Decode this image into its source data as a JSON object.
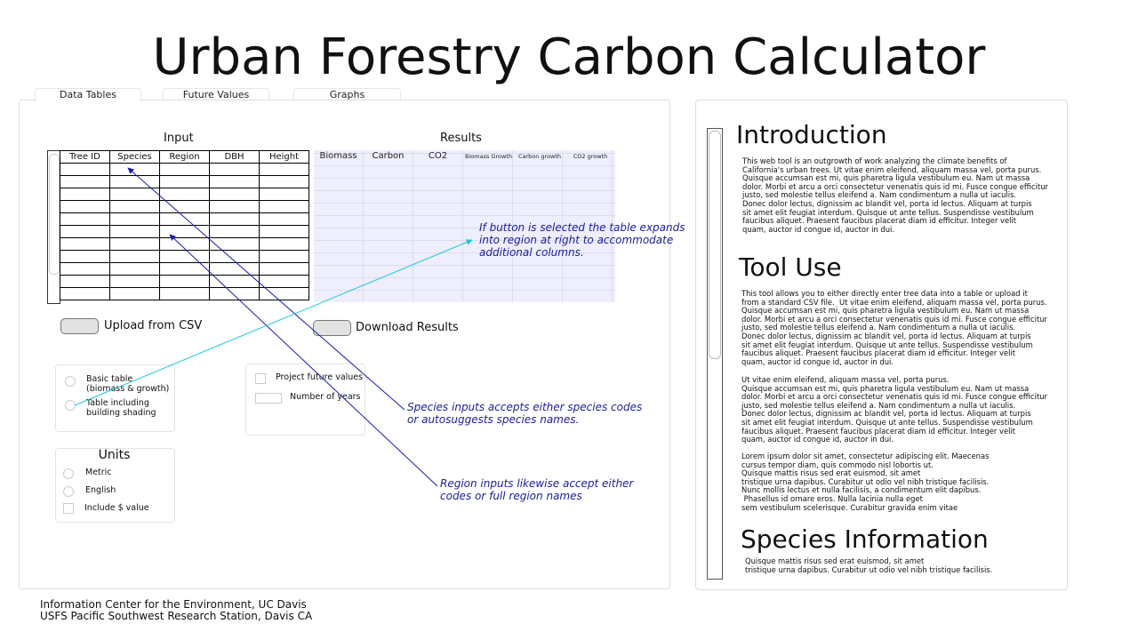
{
  "title": "Urban Forestry Carbon Calculator",
  "tabs": {
    "data_tables": "Data Tables",
    "future_values": "Future Values",
    "graphs": "Graphs"
  },
  "input": {
    "label": "Input",
    "headers": [
      "Tree ID",
      "Species",
      "Region",
      "DBH",
      "Height"
    ]
  },
  "results": {
    "label": "Results",
    "headers": [
      "Biomass",
      "Carbon",
      "CO2",
      "Biomass Growth",
      "Carbon growth",
      "CO2 growth"
    ]
  },
  "buttons": {
    "upload": "Upload from CSV",
    "download": "Download Results"
  },
  "table_options": {
    "basic": "Basic table\n(biomass & growth)",
    "shading": "Table including\nbuilding shading"
  },
  "future": {
    "project": "Project future values",
    "years": "Number of years"
  },
  "units": {
    "title": "Units",
    "metric": "Metric",
    "english": "English",
    "dollar": "Include $ value"
  },
  "notes": {
    "expand": "If button is selected the table expands\ninto region at right to accommodate\nadditional columns.",
    "species": "Species inputs accepts either species codes\nor autosuggests species names.",
    "region": "Region inputs likewise accept either\ncodes or full region names"
  },
  "side": {
    "intro_title": "Introduction",
    "intro_text": "This web tool is an outgrowth of work analyzing the climate benefits of\nCalifornia's urban trees. Ut vitae enim eleifend, aliquam massa vel, porta purus.\nQuisque accumsan est mi, quis pharetra ligula vestibulum eu. Nam ut massa\ndolor. Morbi et arcu a orci consectetur venenatis quis id mi. Fusce congue efficitur\njusto, sed molestie tellus eleifend a. Nam condimentum a nulla ut iaculis.\nDonec dolor lectus, dignissim ac blandit vel, porta id lectus. Aliquam at turpis\nsit amet elit feugiat interdum. Quisque ut ante tellus. Suspendisse vestibulum\nfaucibus aliquet. Praesent faucibus placerat diam id efficitur. Integer velit\nquam, auctor id congue id, auctor in dui.",
    "tool_title": "Tool Use",
    "tool_text_1": "This tool allows you to either directly enter tree data into a table or upload it\nfrom a standard CSV file.  Ut vitae enim eleifend, aliquam massa vel, porta purus.\nQuisque accumsan est mi, quis pharetra ligula vestibulum eu. Nam ut massa\ndolor. Morbi et arcu a orci consectetur venenatis quis id mi. Fusce congue efficitur\njusto, sed molestie tellus eleifend a. Nam condimentum a nulla ut iaculis.\nDonec dolor lectus, dignissim ac blandit vel, porta id lectus. Aliquam at turpis\nsit amet elit feugiat interdum. Quisque ut ante tellus. Suspendisse vestibulum\nfaucibus aliquet. Praesent faucibus placerat diam id efficitur. Integer velit\nquam, auctor id congue id, auctor in dui.",
    "tool_text_2": "Ut vitae enim eleifend, aliquam massa vel, porta purus.\nQuisque accumsan est mi, quis pharetra ligula vestibulum eu. Nam ut massa\ndolor. Morbi et arcu a orci consectetur venenatis quis id mi. Fusce congue efficitur\njusto, sed molestie tellus eleifend a. Nam condimentum a nulla ut iaculis.\nDonec dolor lectus, dignissim ac blandit vel, porta id lectus. Aliquam at turpis\nsit amet elit feugiat interdum. Quisque ut ante tellus. Suspendisse vestibulum\nfaucibus aliquet. Praesent faucibus placerat diam id efficitur. Integer velit\nquam, auctor id congue id, auctor in dui.",
    "tool_text_3": "Lorem ipsum dolor sit amet, consectetur adipiscing elit. Maecenas\ncursus tempor diam, quis commodo nisl lobortis ut.\nQuisque mattis risus sed erat euismod, sit amet\ntristique urna dapibus. Curabitur ut odio vel nibh tristique facilisis.\nNunc mollis lectus et nulla facilisis, a condimentum elit dapibus.\n Phasellus id ornare eros. Nulla lacinia nulla eget\nsem vestibulum scelerisque. Curabitur gravida enim vitae",
    "species_title": "Species Information",
    "species_text": "Quisque mattis risus sed erat euismod, sit amet\ntristique urna dapibus. Curabitur ut odio vel nibh tristique facilisis."
  },
  "footer": "Information Center for the Environment, UC Davis\nUSFS Pacific Southwest Research Station, Davis CA",
  "colors": {
    "note": "#1c1c9a",
    "arrow_blue": "#1a1ab8",
    "arrow_cyan": "#1ec8d8",
    "results_bg": "#eeeefc"
  }
}
